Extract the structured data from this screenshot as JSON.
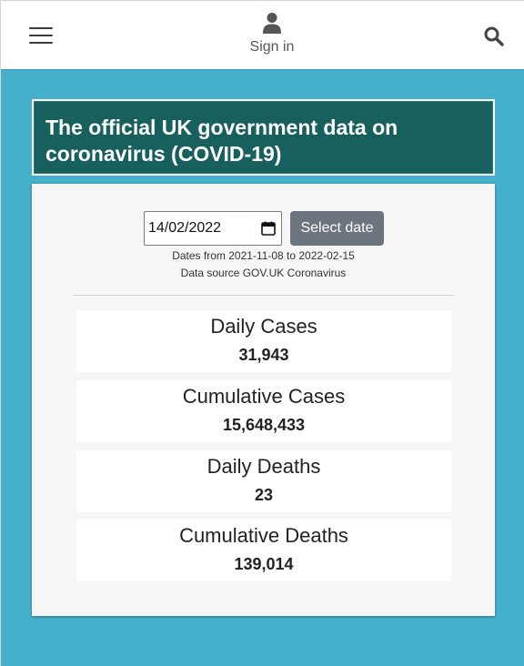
{
  "nav": {
    "signin_label": "Sign in",
    "menu_icon": "hamburger-icon",
    "user_icon": "user-icon",
    "search_icon": "search-icon"
  },
  "title": "The official UK government data on coronavirus (COVID-19)",
  "date_picker": {
    "value": "14/02/2022",
    "button_label": "Select date",
    "range_text": "Dates from 2021-11-08 to 2022-02-15",
    "source_text": "Data source GOV.UK Coronavirus"
  },
  "stats": [
    {
      "label": "Daily Cases",
      "value": "31,943"
    },
    {
      "label": "Cumulative Cases",
      "value": "15,648,433"
    },
    {
      "label": "Daily Deaths",
      "value": "23"
    },
    {
      "label": "Cumulative Deaths",
      "value": "139,014"
    }
  ],
  "colors": {
    "page_bg": "#45b0cb",
    "title_bg": "#17605e",
    "button_bg": "#6c757d",
    "card_bg": "#f6f6f6"
  }
}
